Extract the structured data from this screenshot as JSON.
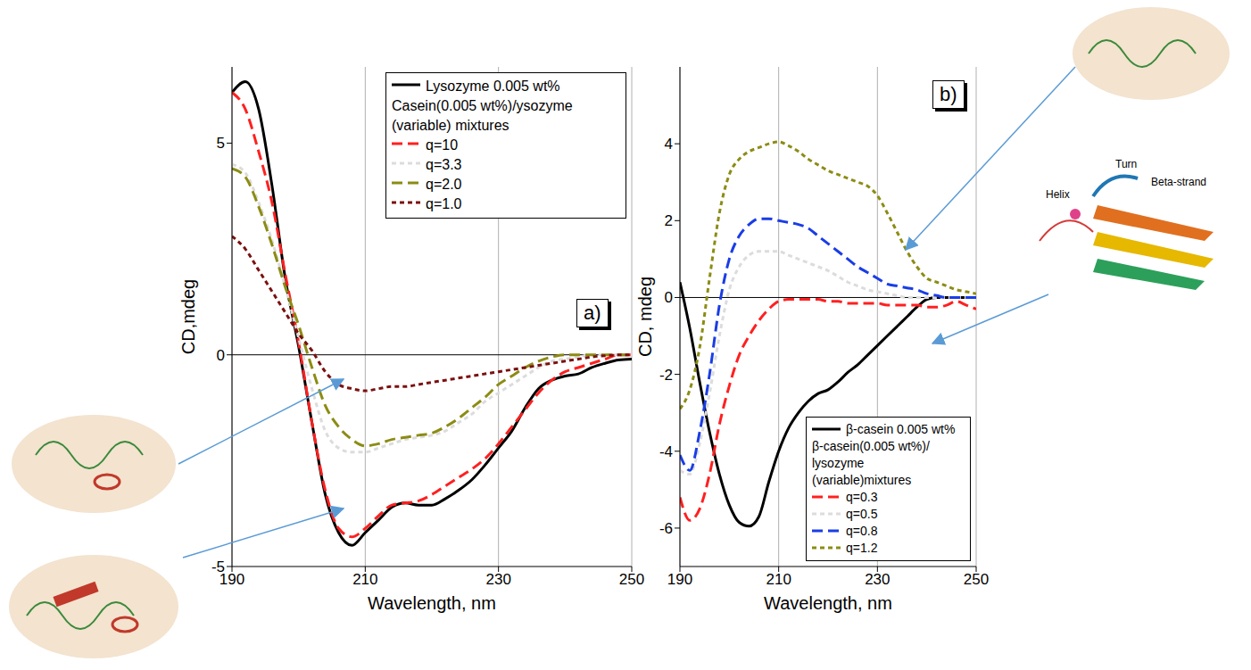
{
  "chart_data": [
    {
      "type": "line",
      "panel_label": "a)",
      "x_label": "Wavelength, nm",
      "y_label": "CD,mdeg",
      "x": [
        190,
        192,
        194,
        196,
        198,
        200,
        202,
        204,
        206,
        208,
        210,
        212,
        214,
        216,
        218,
        220,
        222,
        224,
        226,
        228,
        230,
        232,
        234,
        236,
        238,
        240,
        242,
        244,
        246,
        248,
        250
      ],
      "xlim": [
        190,
        250
      ],
      "xticks": [
        190,
        210,
        230,
        250
      ],
      "ylim": [
        -5,
        6.8
      ],
      "yticks": [
        -5,
        0,
        5
      ],
      "grid": "x",
      "legend": "top right",
      "legend_title": "Casein(0.005 wt%)/ysozyme (variable) mixtures",
      "series": [
        {
          "name": "Lysozyme 0.005 wt%",
          "color": "#000000",
          "line_style": "solid",
          "values": [
            6.2,
            6.45,
            5.8,
            4.0,
            1.8,
            0.2,
            -1.6,
            -3.3,
            -4.2,
            -4.5,
            -4.2,
            -3.9,
            -3.6,
            -3.5,
            -3.55,
            -3.55,
            -3.4,
            -3.2,
            -2.95,
            -2.6,
            -2.2,
            -1.8,
            -1.25,
            -0.8,
            -0.6,
            -0.5,
            -0.45,
            -0.3,
            -0.2,
            -0.12,
            -0.1
          ]
        },
        {
          "name": "q=10",
          "color": "#ff2020",
          "line_style": "dashed",
          "values": [
            6.2,
            5.8,
            4.8,
            3.6,
            1.9,
            0.3,
            -1.6,
            -3.2,
            -4.1,
            -4.3,
            -4.1,
            -3.8,
            -3.55,
            -3.5,
            -3.45,
            -3.3,
            -3.1,
            -2.9,
            -2.7,
            -2.45,
            -2.1,
            -1.7,
            -1.3,
            -0.9,
            -0.6,
            -0.4,
            -0.3,
            -0.2,
            -0.1,
            0,
            0
          ]
        },
        {
          "name": "q=3.3",
          "color": "#dcdcdc",
          "line_style": "dotted",
          "values": [
            4.5,
            4.3,
            3.6,
            2.7,
            1.6,
            0.4,
            -0.8,
            -1.8,
            -2.2,
            -2.3,
            -2.3,
            -2.2,
            -2.1,
            -2.0,
            -1.95,
            -1.9,
            -1.8,
            -1.6,
            -1.4,
            -1.1,
            -0.9,
            -0.7,
            -0.5,
            -0.3,
            -0.15,
            -0.1,
            -0.05,
            0,
            0,
            0,
            0
          ]
        },
        {
          "name": "q=2.0",
          "color": "#8c8c14",
          "line_style": "dashed",
          "values": [
            4.4,
            4.2,
            3.5,
            2.6,
            1.6,
            0.7,
            -0.3,
            -1.2,
            -1.7,
            -2.0,
            -2.15,
            -2.1,
            -2.0,
            -1.95,
            -1.9,
            -1.85,
            -1.7,
            -1.5,
            -1.25,
            -1.0,
            -0.7,
            -0.5,
            -0.3,
            -0.15,
            -0.05,
            0,
            0,
            0,
            0,
            0,
            0
          ]
        },
        {
          "name": "q=1.0",
          "color": "#7b1010",
          "line_style": "dotted",
          "values": [
            2.8,
            2.5,
            2.0,
            1.5,
            1.0,
            0.5,
            0.1,
            -0.4,
            -0.7,
            -0.8,
            -0.85,
            -0.8,
            -0.75,
            -0.75,
            -0.7,
            -0.65,
            -0.6,
            -0.55,
            -0.5,
            -0.45,
            -0.4,
            -0.35,
            -0.3,
            -0.25,
            -0.2,
            -0.15,
            -0.1,
            -0.05,
            -0.02,
            0,
            0
          ]
        }
      ]
    },
    {
      "type": "line",
      "panel_label": "b)",
      "x_label": "Wavelength, nm",
      "y_label": "CD, mdeg",
      "x": [
        190,
        192,
        194,
        196,
        198,
        200,
        202,
        204,
        206,
        208,
        210,
        212,
        214,
        216,
        218,
        220,
        222,
        224,
        226,
        228,
        230,
        232,
        234,
        236,
        238,
        240,
        242,
        244,
        246,
        248,
        250
      ],
      "xlim": [
        190,
        250
      ],
      "xticks": [
        190,
        210,
        230,
        250
      ],
      "ylim": [
        -7,
        6
      ],
      "yticks": [
        -6,
        -4,
        -2,
        0,
        2,
        4
      ],
      "grid": "x",
      "legend": "bottom right",
      "legend_title": "β-casein(0.005 wt%)/ lysozyme (variable)mixtures",
      "annotations": [
        "Turn",
        "Beta-strand",
        "Helix"
      ],
      "series": [
        {
          "name": "β-casein 0.005 wt%",
          "color": "#000000",
          "line_style": "solid",
          "values": [
            0.4,
            -0.8,
            -2.2,
            -3.5,
            -4.6,
            -5.4,
            -5.85,
            -5.95,
            -5.7,
            -4.8,
            -4.0,
            -3.4,
            -3.0,
            -2.7,
            -2.5,
            -2.4,
            -2.2,
            -1.95,
            -1.75,
            -1.5,
            -1.25,
            -1.0,
            -0.75,
            -0.5,
            -0.25,
            -0.05,
            0,
            0,
            0,
            0,
            0
          ]
        },
        {
          "name": "q=0.3",
          "color": "#ff2020",
          "line_style": "dashed",
          "values": [
            -5.2,
            -5.8,
            -5.5,
            -4.6,
            -3.3,
            -2.3,
            -1.5,
            -1.0,
            -0.6,
            -0.3,
            -0.1,
            -0.05,
            -0.05,
            -0.05,
            -0.05,
            -0.1,
            -0.1,
            -0.15,
            -0.15,
            -0.15,
            -0.15,
            -0.2,
            -0.2,
            -0.2,
            -0.2,
            -0.25,
            -0.25,
            -0.2,
            -0.1,
            -0.2,
            -0.3
          ]
        },
        {
          "name": "q=0.5",
          "color": "#dcdcdc",
          "line_style": "dotted",
          "values": [
            -4.5,
            -4.6,
            -3.8,
            -2.5,
            -1.0,
            0.2,
            0.8,
            1.1,
            1.2,
            1.2,
            1.2,
            1.1,
            1.0,
            0.9,
            0.8,
            0.7,
            0.55,
            0.4,
            0.3,
            0.2,
            0.15,
            0.1,
            0.05,
            0,
            0,
            0,
            0,
            0,
            0,
            0,
            0
          ]
        },
        {
          "name": "q=0.8",
          "color": "#1a3de6",
          "line_style": "dashed",
          "values": [
            -4.1,
            -4.5,
            -3.5,
            -2.0,
            -0.2,
            1.0,
            1.6,
            1.9,
            2.05,
            2.05,
            2.0,
            1.95,
            1.9,
            1.8,
            1.6,
            1.4,
            1.2,
            1.0,
            0.8,
            0.65,
            0.5,
            0.35,
            0.3,
            0.25,
            0.2,
            0.1,
            0.05,
            0,
            0,
            0,
            0
          ]
        },
        {
          "name": "q=1.2",
          "color": "#8c8c14",
          "line_style": "dotted",
          "values": [
            -2.9,
            -2.4,
            -1.3,
            0.5,
            2.2,
            3.2,
            3.6,
            3.8,
            3.9,
            4.0,
            4.05,
            3.95,
            3.8,
            3.6,
            3.45,
            3.3,
            3.2,
            3.1,
            3.0,
            2.9,
            2.65,
            2.2,
            1.7,
            1.2,
            0.8,
            0.5,
            0.4,
            0.3,
            0.2,
            0.15,
            0.1
          ]
        }
      ]
    }
  ]
}
